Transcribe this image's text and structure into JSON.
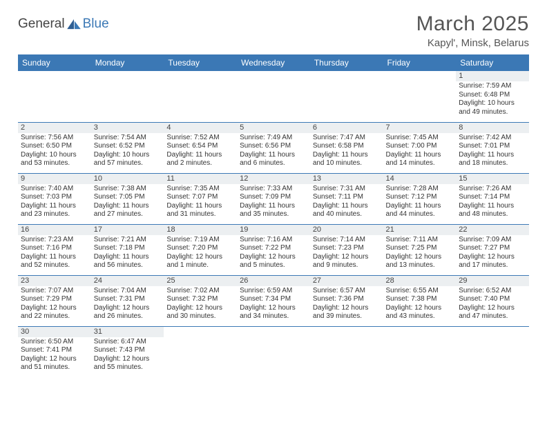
{
  "logo": {
    "word1": "General",
    "word2": "Blue"
  },
  "title": "March 2025",
  "location": "Kapyl', Minsk, Belarus",
  "colors": {
    "header_bg": "#3b78b5",
    "header_text": "#ffffff",
    "daynum_bg": "#eceff1",
    "border": "#3b78b5",
    "page_bg": "#ffffff",
    "text": "#333333",
    "logo_accent": "#3b78b5"
  },
  "weekdays": [
    "Sunday",
    "Monday",
    "Tuesday",
    "Wednesday",
    "Thursday",
    "Friday",
    "Saturday"
  ],
  "weeks": [
    [
      null,
      null,
      null,
      null,
      null,
      null,
      {
        "n": "1",
        "sunrise": "Sunrise: 7:59 AM",
        "sunset": "Sunset: 6:48 PM",
        "daylight": "Daylight: 10 hours and 49 minutes."
      }
    ],
    [
      {
        "n": "2",
        "sunrise": "Sunrise: 7:56 AM",
        "sunset": "Sunset: 6:50 PM",
        "daylight": "Daylight: 10 hours and 53 minutes."
      },
      {
        "n": "3",
        "sunrise": "Sunrise: 7:54 AM",
        "sunset": "Sunset: 6:52 PM",
        "daylight": "Daylight: 10 hours and 57 minutes."
      },
      {
        "n": "4",
        "sunrise": "Sunrise: 7:52 AM",
        "sunset": "Sunset: 6:54 PM",
        "daylight": "Daylight: 11 hours and 2 minutes."
      },
      {
        "n": "5",
        "sunrise": "Sunrise: 7:49 AM",
        "sunset": "Sunset: 6:56 PM",
        "daylight": "Daylight: 11 hours and 6 minutes."
      },
      {
        "n": "6",
        "sunrise": "Sunrise: 7:47 AM",
        "sunset": "Sunset: 6:58 PM",
        "daylight": "Daylight: 11 hours and 10 minutes."
      },
      {
        "n": "7",
        "sunrise": "Sunrise: 7:45 AM",
        "sunset": "Sunset: 7:00 PM",
        "daylight": "Daylight: 11 hours and 14 minutes."
      },
      {
        "n": "8",
        "sunrise": "Sunrise: 7:42 AM",
        "sunset": "Sunset: 7:01 PM",
        "daylight": "Daylight: 11 hours and 18 minutes."
      }
    ],
    [
      {
        "n": "9",
        "sunrise": "Sunrise: 7:40 AM",
        "sunset": "Sunset: 7:03 PM",
        "daylight": "Daylight: 11 hours and 23 minutes."
      },
      {
        "n": "10",
        "sunrise": "Sunrise: 7:38 AM",
        "sunset": "Sunset: 7:05 PM",
        "daylight": "Daylight: 11 hours and 27 minutes."
      },
      {
        "n": "11",
        "sunrise": "Sunrise: 7:35 AM",
        "sunset": "Sunset: 7:07 PM",
        "daylight": "Daylight: 11 hours and 31 minutes."
      },
      {
        "n": "12",
        "sunrise": "Sunrise: 7:33 AM",
        "sunset": "Sunset: 7:09 PM",
        "daylight": "Daylight: 11 hours and 35 minutes."
      },
      {
        "n": "13",
        "sunrise": "Sunrise: 7:31 AM",
        "sunset": "Sunset: 7:11 PM",
        "daylight": "Daylight: 11 hours and 40 minutes."
      },
      {
        "n": "14",
        "sunrise": "Sunrise: 7:28 AM",
        "sunset": "Sunset: 7:12 PM",
        "daylight": "Daylight: 11 hours and 44 minutes."
      },
      {
        "n": "15",
        "sunrise": "Sunrise: 7:26 AM",
        "sunset": "Sunset: 7:14 PM",
        "daylight": "Daylight: 11 hours and 48 minutes."
      }
    ],
    [
      {
        "n": "16",
        "sunrise": "Sunrise: 7:23 AM",
        "sunset": "Sunset: 7:16 PM",
        "daylight": "Daylight: 11 hours and 52 minutes."
      },
      {
        "n": "17",
        "sunrise": "Sunrise: 7:21 AM",
        "sunset": "Sunset: 7:18 PM",
        "daylight": "Daylight: 11 hours and 56 minutes."
      },
      {
        "n": "18",
        "sunrise": "Sunrise: 7:19 AM",
        "sunset": "Sunset: 7:20 PM",
        "daylight": "Daylight: 12 hours and 1 minute."
      },
      {
        "n": "19",
        "sunrise": "Sunrise: 7:16 AM",
        "sunset": "Sunset: 7:22 PM",
        "daylight": "Daylight: 12 hours and 5 minutes."
      },
      {
        "n": "20",
        "sunrise": "Sunrise: 7:14 AM",
        "sunset": "Sunset: 7:23 PM",
        "daylight": "Daylight: 12 hours and 9 minutes."
      },
      {
        "n": "21",
        "sunrise": "Sunrise: 7:11 AM",
        "sunset": "Sunset: 7:25 PM",
        "daylight": "Daylight: 12 hours and 13 minutes."
      },
      {
        "n": "22",
        "sunrise": "Sunrise: 7:09 AM",
        "sunset": "Sunset: 7:27 PM",
        "daylight": "Daylight: 12 hours and 17 minutes."
      }
    ],
    [
      {
        "n": "23",
        "sunrise": "Sunrise: 7:07 AM",
        "sunset": "Sunset: 7:29 PM",
        "daylight": "Daylight: 12 hours and 22 minutes."
      },
      {
        "n": "24",
        "sunrise": "Sunrise: 7:04 AM",
        "sunset": "Sunset: 7:31 PM",
        "daylight": "Daylight: 12 hours and 26 minutes."
      },
      {
        "n": "25",
        "sunrise": "Sunrise: 7:02 AM",
        "sunset": "Sunset: 7:32 PM",
        "daylight": "Daylight: 12 hours and 30 minutes."
      },
      {
        "n": "26",
        "sunrise": "Sunrise: 6:59 AM",
        "sunset": "Sunset: 7:34 PM",
        "daylight": "Daylight: 12 hours and 34 minutes."
      },
      {
        "n": "27",
        "sunrise": "Sunrise: 6:57 AM",
        "sunset": "Sunset: 7:36 PM",
        "daylight": "Daylight: 12 hours and 39 minutes."
      },
      {
        "n": "28",
        "sunrise": "Sunrise: 6:55 AM",
        "sunset": "Sunset: 7:38 PM",
        "daylight": "Daylight: 12 hours and 43 minutes."
      },
      {
        "n": "29",
        "sunrise": "Sunrise: 6:52 AM",
        "sunset": "Sunset: 7:40 PM",
        "daylight": "Daylight: 12 hours and 47 minutes."
      }
    ],
    [
      {
        "n": "30",
        "sunrise": "Sunrise: 6:50 AM",
        "sunset": "Sunset: 7:41 PM",
        "daylight": "Daylight: 12 hours and 51 minutes."
      },
      {
        "n": "31",
        "sunrise": "Sunrise: 6:47 AM",
        "sunset": "Sunset: 7:43 PM",
        "daylight": "Daylight: 12 hours and 55 minutes."
      },
      null,
      null,
      null,
      null,
      null
    ]
  ]
}
